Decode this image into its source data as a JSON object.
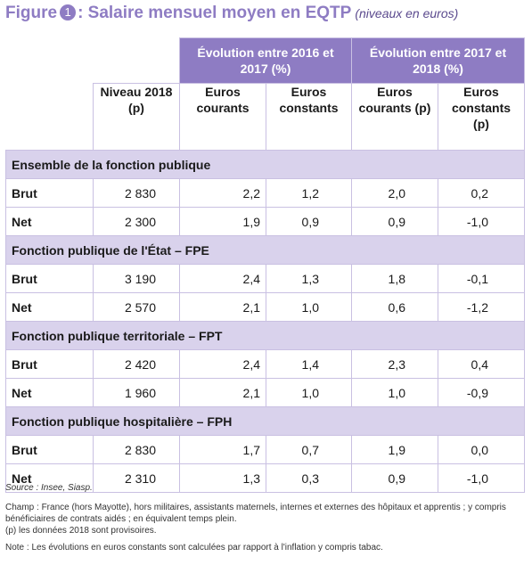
{
  "title": {
    "prefix": "Figure",
    "number": "1",
    "main": ": Salaire mensuel moyen en EQTP",
    "sub": "(niveaux en euros)"
  },
  "table": {
    "group_headers": [
      "Évolution entre 2016 et 2017 (%)",
      "Évolution entre 2017 et 2018 (%)"
    ],
    "column_headers": [
      "Niveau 2018 (p)",
      "Euros courants",
      "Euros constants",
      "Euros courants (p)",
      "Euros constants (p)"
    ],
    "sections": [
      {
        "label": "Ensemble de la fonction publique",
        "rows": [
          {
            "label": "Brut",
            "values": [
              "2 830",
              "2,2",
              "1,2",
              "2,0",
              "0,2"
            ]
          },
          {
            "label": "Net",
            "values": [
              "2 300",
              "1,9",
              "0,9",
              "0,9",
              "-1,0"
            ]
          }
        ]
      },
      {
        "label": "Fonction publique de l'État – FPE",
        "rows": [
          {
            "label": "Brut",
            "values": [
              "3 190",
              "2,4",
              "1,3",
              "1,8",
              "-0,1"
            ]
          },
          {
            "label": "Net",
            "values": [
              "2 570",
              "2,1",
              "1,0",
              "0,6",
              "-1,2"
            ]
          }
        ]
      },
      {
        "label": "Fonction publique territoriale – FPT",
        "rows": [
          {
            "label": "Brut",
            "values": [
              "2 420",
              "2,4",
              "1,4",
              "2,3",
              "0,4"
            ]
          },
          {
            "label": "Net",
            "values": [
              "1 960",
              "2,1",
              "1,0",
              "1,0",
              "-0,9"
            ]
          }
        ]
      },
      {
        "label": "Fonction publique hospitalière – FPH",
        "rows": [
          {
            "label": "Brut",
            "values": [
              "2 830",
              "1,7",
              "0,7",
              "1,9",
              "0,0"
            ]
          },
          {
            "label": "Net",
            "values": [
              "2 310",
              "1,3",
              "0,3",
              "0,9",
              "-1,0"
            ]
          }
        ]
      }
    ]
  },
  "notes": {
    "source": "Source : Insee, Siasp.",
    "champ": "Champ : France (hors Mayotte), hors militaires, assistants maternels, internes et externes  des hôpitaux et apprentis ; y compris bénéficiaires de contrats aidés ; en équivalent temps plein.",
    "provisional": "(p) les données 2018 sont provisoires.",
    "note": "Note : Les évolutions en euros constants sont calculées par rapport à l'inflation y compris tabac."
  },
  "colors": {
    "accent": "#8e7cc3",
    "section_band": "#d9d2ec",
    "grid": "#c9c0e2"
  }
}
